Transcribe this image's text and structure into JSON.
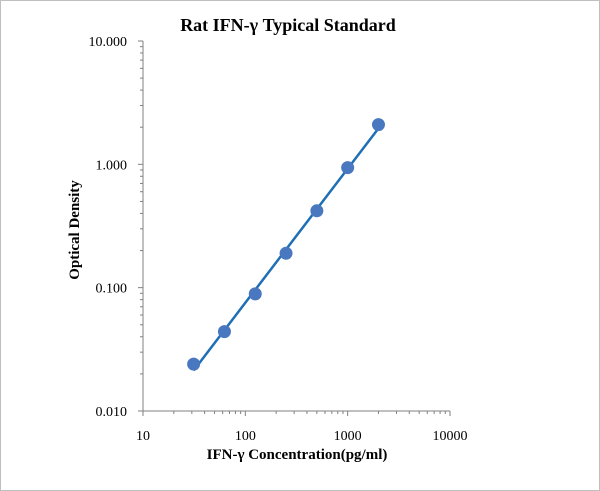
{
  "chart_data": {
    "type": "scatter",
    "title": "Rat IFN-γ Typical Standard",
    "xlabel": "IFN-γ Concentration(pg/ml)",
    "ylabel": "Optical Density",
    "x_scale": "log",
    "y_scale": "log",
    "xlim": [
      10,
      10000
    ],
    "ylim": [
      0.01,
      10
    ],
    "x_ticks": [
      "10",
      "100",
      "1000",
      "10000"
    ],
    "y_ticks": [
      "10.000",
      "1.000",
      "0.100",
      "0.010"
    ],
    "grid": false,
    "legend": "none",
    "trendline": "power fit",
    "series": [
      {
        "x": [
          31.25,
          62.5,
          125,
          250,
          500,
          1000,
          2000
        ],
        "y": [
          0.024,
          0.044,
          0.089,
          0.19,
          0.42,
          0.94,
          2.1
        ]
      }
    ],
    "colors": {
      "points": "#4a78c0",
      "line": "#1f6fb4",
      "axis": "#808080"
    }
  }
}
